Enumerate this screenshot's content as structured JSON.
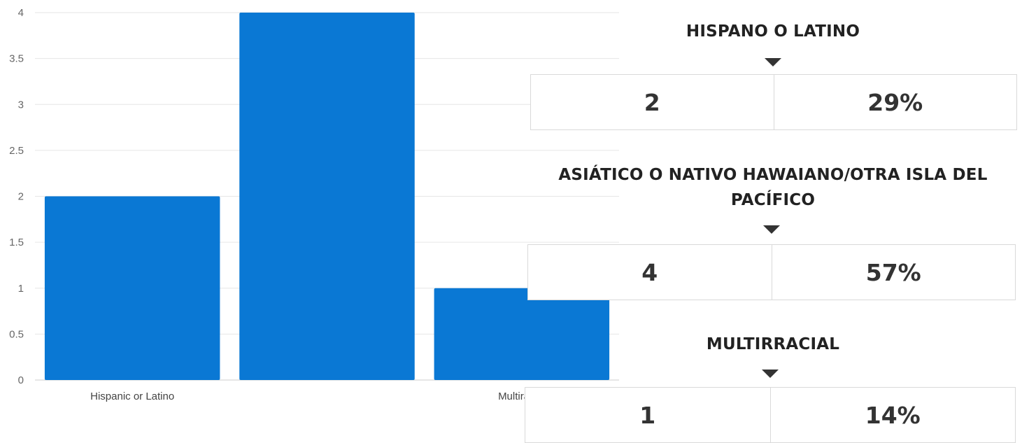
{
  "chart_data": {
    "type": "bar",
    "categories": [
      "Hispanic or Latino",
      "",
      "Multiracial"
    ],
    "values": [
      2,
      4,
      1
    ],
    "ylim": [
      0,
      4
    ],
    "yticks": [
      "0",
      "0.5",
      "1",
      "1.5",
      "2",
      "2.5",
      "3",
      "3.5",
      "4"
    ],
    "grid": true,
    "colors": {
      "bar": "#0a78d4",
      "grid": "#e6e6e6",
      "baseline": "#cccccc"
    }
  },
  "stats": [
    {
      "title": "HISPANO O LATINO",
      "count": "2",
      "percent": "29%"
    },
    {
      "title": "ASIÁTICO O NATIVO HAWAIANO/OTRA ISLA DEL PACÍFICO",
      "count": "4",
      "percent": "57%"
    },
    {
      "title": "MULTIRRACIAL",
      "count": "1",
      "percent": "14%"
    }
  ]
}
